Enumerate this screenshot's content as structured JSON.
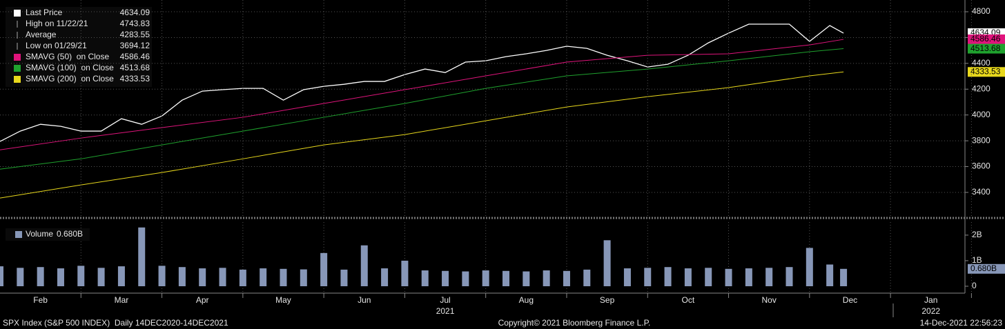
{
  "chart_data": [
    {
      "type": "line",
      "x": [
        0,
        0.25,
        0.5,
        0.75,
        1,
        1.25,
        1.5,
        1.75,
        2,
        2.25,
        2.5,
        2.75,
        3,
        3.25,
        3.5,
        3.75,
        4,
        4.25,
        4.5,
        4.75,
        5,
        5.25,
        5.5,
        5.75,
        6,
        6.25,
        6.5,
        6.75,
        7,
        7.25,
        7.5,
        7.75,
        8,
        8.25,
        8.5,
        8.75,
        9,
        9.25,
        9.5,
        9.75,
        10,
        10.25,
        10.42
      ],
      "xlim": [
        0,
        11.92
      ],
      "ylim": [
        3218,
        4891
      ],
      "yticks": [
        3400,
        3600,
        3800,
        4000,
        4200,
        4400,
        4600,
        4800
      ],
      "grid": true,
      "series": [
        {
          "name": "Last Price",
          "color": "#ffffff",
          "last_value": 4634.09,
          "values": [
            3795,
            3875,
            3928,
            3912,
            3875,
            3875,
            3971,
            3928,
            3992,
            4115,
            4185,
            4196,
            4206,
            4206,
            4115,
            4196,
            4222,
            4238,
            4260,
            4260,
            4313,
            4356,
            4329,
            4410,
            4420,
            4452,
            4474,
            4500,
            4533,
            4516,
            4463,
            4420,
            4372,
            4393,
            4463,
            4559,
            4634,
            4704,
            4704,
            4704,
            4570,
            4693,
            4634
          ]
        },
        {
          "name": "SMAVG (50)  on Close",
          "color": "#e0147c",
          "last_value": 4586.46,
          "x": [
            0,
            1,
            2,
            3,
            4,
            5,
            6,
            7,
            8,
            9,
            10,
            10.42
          ],
          "values": [
            3730,
            3821,
            3902,
            3982,
            4089,
            4196,
            4303,
            4410,
            4463,
            4474,
            4543,
            4586
          ]
        },
        {
          "name": "SMAVG (100)  on Close",
          "color": "#1fa22e",
          "last_value": 4513.68,
          "x": [
            0,
            1,
            2,
            3,
            4,
            5,
            6,
            7,
            8,
            9,
            10,
            10.42
          ],
          "values": [
            3580,
            3660,
            3768,
            3875,
            3982,
            4089,
            4206,
            4303,
            4356,
            4420,
            4490,
            4514
          ]
        },
        {
          "name": "SMAVG (200)  on Close",
          "color": "#e8d81c",
          "last_value": 4333.53,
          "x": [
            0,
            1,
            2,
            3,
            4,
            5,
            6,
            7,
            8,
            9,
            10,
            10.42
          ],
          "values": [
            3356,
            3458,
            3554,
            3660,
            3768,
            3848,
            3955,
            4062,
            4142,
            4212,
            4303,
            4334
          ]
        }
      ],
      "stats": [
        {
          "label": "High on 11/22/21",
          "value": 4743.83
        },
        {
          "label": "Average",
          "value": 4283.55
        },
        {
          "label": "Low on 01/29/21",
          "value": 3694.12
        }
      ]
    },
    {
      "type": "bar",
      "x": [
        0,
        0.25,
        0.5,
        0.75,
        1,
        1.25,
        1.5,
        1.75,
        2,
        2.25,
        2.5,
        2.75,
        3,
        3.25,
        3.5,
        3.75,
        4,
        4.25,
        4.5,
        4.75,
        5,
        5.25,
        5.5,
        5.75,
        6,
        6.25,
        6.5,
        6.75,
        7,
        7.25,
        7.5,
        7.75,
        8,
        8.25,
        8.5,
        8.75,
        9,
        9.25,
        9.5,
        9.75,
        10,
        10.25,
        10.42
      ],
      "xlim": [
        0,
        11.92
      ],
      "ylim": [
        -0.27,
        2.51
      ],
      "yticks": [
        0,
        {
          "value": 1,
          "label": "1B"
        },
        {
          "value": 2,
          "label": "2B"
        }
      ],
      "xticks": [
        {
          "value": 0.5,
          "label": "Feb"
        },
        {
          "value": 1.5,
          "label": "Mar"
        },
        {
          "value": 2.5,
          "label": "Apr"
        },
        {
          "value": 3.5,
          "label": "May"
        },
        {
          "value": 4.5,
          "label": "Jun"
        },
        {
          "value": 5.5,
          "label": "Jul"
        },
        {
          "value": 6.5,
          "label": "Aug"
        },
        {
          "value": 7.5,
          "label": "Sep"
        },
        {
          "value": 8.5,
          "label": "Oct"
        },
        {
          "value": 9.5,
          "label": "Nov"
        },
        {
          "value": 10.5,
          "label": "Dec"
        },
        {
          "value": 11.5,
          "label": "Jan"
        }
      ],
      "year_labels": [
        {
          "value": 5.5,
          "label": "2021"
        },
        {
          "value": 11.5,
          "label": "2022"
        }
      ],
      "series": [
        {
          "name": "Volume",
          "color": "#8797b8",
          "last_value": 0.68,
          "last_label": "0.680B",
          "values": [
            0.78,
            0.72,
            0.75,
            0.7,
            0.8,
            0.72,
            0.78,
            2.3,
            0.8,
            0.75,
            0.7,
            0.72,
            0.65,
            0.7,
            0.68,
            0.66,
            1.3,
            0.65,
            1.6,
            0.7,
            1.0,
            0.62,
            0.6,
            0.58,
            0.62,
            0.6,
            0.58,
            0.62,
            0.6,
            0.65,
            1.8,
            0.7,
            0.72,
            0.75,
            0.7,
            0.72,
            0.68,
            0.7,
            0.72,
            0.75,
            1.5,
            0.85,
            0.68
          ]
        }
      ]
    }
  ],
  "footer": {
    "left": "SPX Index (S&P 500 INDEX)  Daily 14DEC2020-14DEC2021",
    "center": "Copyright© 2021 Bloomberg Finance L.P.",
    "right": "14-Dec-2021 22:56:23"
  }
}
